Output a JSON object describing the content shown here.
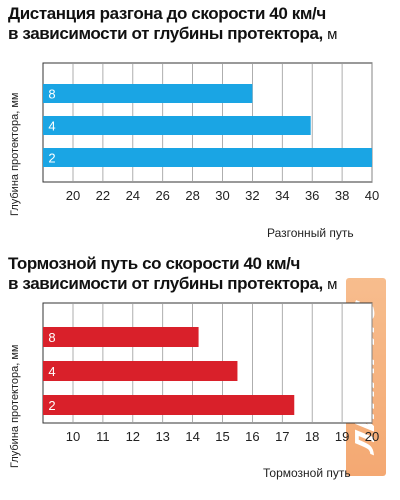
{
  "chart_data": [
    {
      "type": "bar",
      "orientation": "horizontal",
      "title": "Дистанция разгона до скорости 40 км/ч в зависимости от глубины протектора,",
      "title_line1": "Дистанция разгона до скорости 40 км/ч",
      "title_line2": "в зависимости от глубины  протектора,",
      "title_unit": "м",
      "xlabel": "Разгонный путь",
      "ylabel": "Глубина протектора, мм",
      "categories": [
        "8",
        "4",
        "2"
      ],
      "values": [
        32,
        35.9,
        40
      ],
      "xlim": [
        20,
        40
      ],
      "xticks": [
        "20",
        "22",
        "24",
        "26",
        "28",
        "30",
        "32",
        "34",
        "36",
        "38",
        "40"
      ],
      "grid": true,
      "color": "#1aa5e4"
    },
    {
      "type": "bar",
      "orientation": "horizontal",
      "title": "Тормозной путь со скорости 40 км/ч в зависимости от глубины протектора,",
      "title_line1": "Тормозной путь со скорости 40 км/ч",
      "title_line2": "в зависимости от глубины  протектора,",
      "title_unit": "м",
      "xlabel": "Тормозной путь",
      "ylabel": "Глубина протектора, мм",
      "categories": [
        "8",
        "4",
        "2"
      ],
      "values": [
        14.2,
        15.5,
        17.4
      ],
      "xlim": [
        10,
        20
      ],
      "xticks": [
        "10",
        "11",
        "12",
        "13",
        "14",
        "15",
        "16",
        "17",
        "18",
        "19",
        "20"
      ],
      "grid": true,
      "color": "#d9202a"
    }
  ],
  "watermark": {
    "text": "ЛИНАРИС",
    "color": "#f39a5a"
  }
}
